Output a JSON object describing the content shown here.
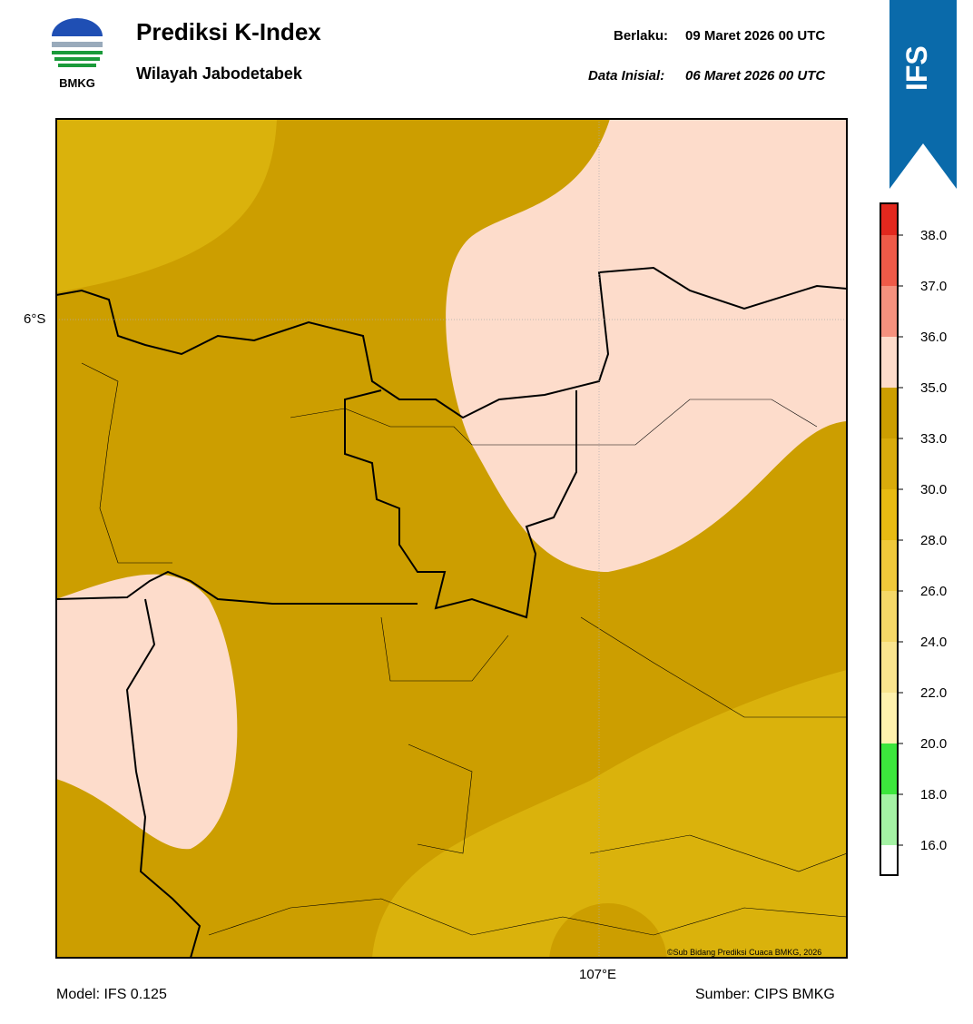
{
  "header": {
    "logo_text": "BMKG",
    "title": "Prediksi K-Index",
    "subtitle": "Wilayah Jabodetabek",
    "valid_label": "Berlaku:",
    "valid_value": "09 Maret 2026 00 UTC",
    "init_label": "Data Inisial:",
    "init_value": "06 Maret 2026 00 UTC",
    "model_badge": "IFS"
  },
  "map": {
    "lat_label": "6°S",
    "lon_label": "107°E",
    "copyright": "©Sub Bidang Prediksi Cuaca BMKG, 2026"
  },
  "legend": {
    "labels": [
      "38.0",
      "37.0",
      "36.0",
      "35.0",
      "33.0",
      "30.0",
      "28.0",
      "26.0",
      "24.0",
      "22.0",
      "20.0",
      "18.0",
      "16.0"
    ],
    "colors": [
      "#e2281e",
      "#ef5a48",
      "#f5917e",
      "#fddccb",
      "#cc9e00",
      "#d9ab0b",
      "#e8bb12",
      "#f0c93a",
      "#f5d867",
      "#fae58e",
      "#fff2ad",
      "#3ce63c",
      "#a4f2a4",
      "#ffffff"
    ]
  },
  "footer": {
    "model": "Model: IFS 0.125",
    "source": "Sumber: CIPS BMKG"
  }
}
